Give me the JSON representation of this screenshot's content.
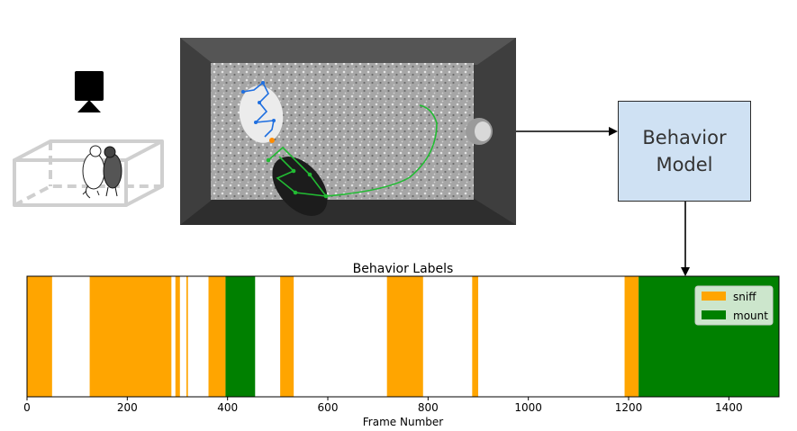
{
  "icons": {
    "camera": "camera-icon",
    "cage": "mouse-cage-illustration",
    "arena": "mouse-arena-photo"
  },
  "model": {
    "label": "Behavior\nModel"
  },
  "colors": {
    "model_fill": "#cfe1f3",
    "sniff": "#ffa500",
    "mount": "#008000",
    "pose_resident": "#1f6fe0",
    "pose_intruder": "#22bb33"
  },
  "chart_data": {
    "type": "bar",
    "title": "Behavior Labels",
    "xlabel": "Frame Number",
    "ylabel": "",
    "xlim": [
      0,
      1500
    ],
    "xticks": [
      0,
      200,
      400,
      600,
      800,
      1000,
      1200,
      1400
    ],
    "grid": false,
    "legend_position": "top-right",
    "series": [
      {
        "name": "sniff",
        "color": "#ffa500",
        "segments": [
          [
            0,
            50
          ],
          [
            125,
            288
          ],
          [
            296,
            305
          ],
          [
            318,
            321
          ],
          [
            362,
            396
          ],
          [
            505,
            532
          ],
          [
            718,
            790
          ],
          [
            888,
            900
          ],
          [
            1192,
            1220
          ]
        ]
      },
      {
        "name": "mount",
        "color": "#008000",
        "segments": [
          [
            396,
            455
          ],
          [
            1220,
            1500
          ]
        ]
      }
    ]
  }
}
